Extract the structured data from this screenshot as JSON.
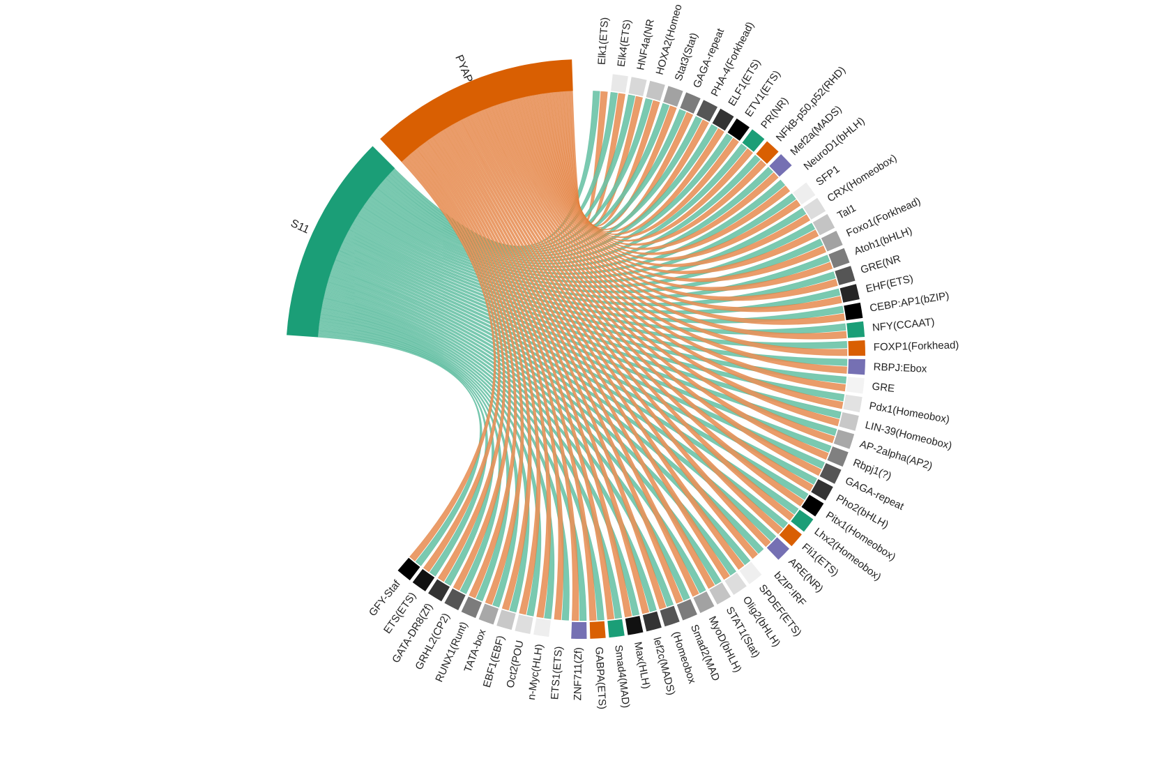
{
  "chart_data": {
    "type": "chord",
    "groups": [
      {
        "name": "PYAP",
        "color": "#d95f02",
        "ribbon": "#e8915a"
      },
      {
        "name": "S11",
        "color": "#1b9e77",
        "ribbon": "#6bc3a7"
      }
    ],
    "targets": [
      {
        "label": "Elk1(ETS)",
        "color": "#ffffff"
      },
      {
        "label": "Elk4(ETS)",
        "color": "#e8e8e8"
      },
      {
        "label": "HNF4a(NR",
        "color": "#d8d8d8"
      },
      {
        "label": "HOXA2(Homeo",
        "color": "#c4c4c4"
      },
      {
        "label": "Stat3(Stat)",
        "color": "#a2a2a2"
      },
      {
        "label": "GAGA-repeat",
        "color": "#7c7c7c"
      },
      {
        "label": "PHA-4(Forkhead)",
        "color": "#555555"
      },
      {
        "label": "ELF1(ETS)",
        "color": "#333333"
      },
      {
        "label": "ETV1(ETS)",
        "color": "#000000"
      },
      {
        "label": "PR(NR)",
        "color": "#1b9e77"
      },
      {
        "label": "NFkB-p50,p52(RHD)",
        "color": "#d95f02"
      },
      {
        "label": "Mef2a(MADS)",
        "color": "#7570b3"
      },
      {
        "label": "NeuroD1(bHLH)",
        "color": "#ffffff"
      },
      {
        "label": "SFP1",
        "color": "#eeeeee"
      },
      {
        "label": "CRX(Homeobox)",
        "color": "#dcdcdc"
      },
      {
        "label": "Tal1",
        "color": "#c4c4c4"
      },
      {
        "label": "Foxo1(Forkhead)",
        "color": "#a2a2a2"
      },
      {
        "label": "Atoh1(bHLH)",
        "color": "#7c7c7c"
      },
      {
        "label": "GRE(NR",
        "color": "#555555"
      },
      {
        "label": "EHF(ETS)",
        "color": "#262626"
      },
      {
        "label": "CEBP:AP1(bZIP)",
        "color": "#000000"
      },
      {
        "label": "NFY(CCAAT)",
        "color": "#1b9e77"
      },
      {
        "label": "FOXP1(Forkhead)",
        "color": "#d95f02"
      },
      {
        "label": "RBPJ:Ebox",
        "color": "#7570b3"
      },
      {
        "label": "GRE",
        "color": "#f3f3f3"
      },
      {
        "label": "Pdx1(Homeobox)",
        "color": "#e2e2e2"
      },
      {
        "label": "LIN-39(Homeobox)",
        "color": "#c8c8c8"
      },
      {
        "label": "AP-2alpha(AP2)",
        "color": "#a8a8a8"
      },
      {
        "label": "Rbpj1(?)",
        "color": "#808080"
      },
      {
        "label": "GAGA-repeat",
        "color": "#555555"
      },
      {
        "label": "Pho2(bHLH)",
        "color": "#333333"
      },
      {
        "label": "Pitx1(Homeobox)",
        "color": "#000000"
      },
      {
        "label": "Lhx2(Homeobox)",
        "color": "#1b9e77"
      },
      {
        "label": "Fli1(ETS)",
        "color": "#d95f02"
      },
      {
        "label": "ARE(NR)",
        "color": "#7570b3"
      },
      {
        "label": "bZIP:IRF",
        "color": "#ffffff"
      },
      {
        "label": "SPDEF(ETS)",
        "color": "#efefef"
      },
      {
        "label": "Olig2(bHLH)",
        "color": "#dddddd"
      },
      {
        "label": "STAT1(Stat)",
        "color": "#c4c4c4"
      },
      {
        "label": "MyoD(bHLH)",
        "color": "#a2a2a2"
      },
      {
        "label": "Smad2(MAD",
        "color": "#7c7c7c"
      },
      {
        "label": "(Homeobox",
        "color": "#555555"
      },
      {
        "label": "lef2c(MADS)",
        "color": "#333333"
      },
      {
        "label": "Max(HLH)",
        "color": "#111111"
      },
      {
        "label": "Smad4(MAD)",
        "color": "#1b9e77"
      },
      {
        "label": "GABPA(ETS)",
        "color": "#d95f02"
      },
      {
        "label": "ZNF711(Zf)",
        "color": "#7570b3"
      },
      {
        "label": "ETS1(ETS)",
        "color": "#ffffff"
      },
      {
        "label": "n-Myc(HLH)",
        "color": "#eeeeee"
      },
      {
        "label": "Oct2(POU",
        "color": "#dedede"
      },
      {
        "label": "EBF1(EBF)",
        "color": "#c8c8c8"
      },
      {
        "label": "TATA-box",
        "color": "#a8a8a8"
      },
      {
        "label": "RUNX1(Runt)",
        "color": "#7c7c7c"
      },
      {
        "label": "GRHL2(CP2)",
        "color": "#555555"
      },
      {
        "label": "GATA-DR8(Zf)",
        "color": "#333333"
      },
      {
        "label": "ETS(ETS)",
        "color": "#111111"
      },
      {
        "label": "GFY-Staf",
        "color": "#000000"
      }
    ],
    "links": "each target is linked to both PYAP and S11"
  }
}
